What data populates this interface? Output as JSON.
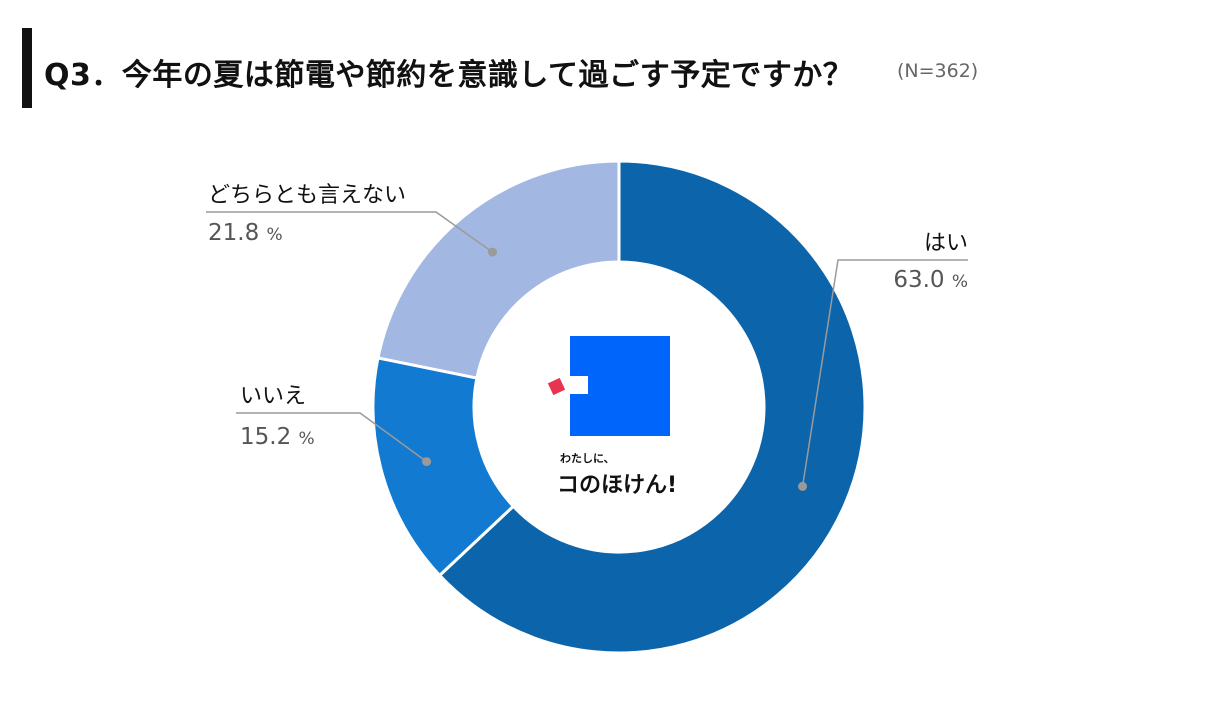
{
  "header": {
    "title": "Q3．今年の夏は節電や節約を意識して過ごす予定ですか？",
    "subtitle": "(N=362)"
  },
  "chart_data": {
    "type": "pie",
    "donut": true,
    "series": [
      {
        "name": "はい",
        "value": 63.0,
        "label": "63.0",
        "color": "#0c64ab"
      },
      {
        "name": "いいえ",
        "value": 15.2,
        "label": "15.2",
        "color": "#127ad0"
      },
      {
        "name": "どちらとも言えない",
        "value": 21.8,
        "label": "21.8",
        "color": "#a2b8e2"
      }
    ],
    "unit": "%",
    "start": "12 o'clock",
    "direction": "clockwise"
  },
  "logo": {
    "small_text": "わたしに、",
    "big_text": "コのほけん!",
    "colors": {
      "square": "#0065fa",
      "accent": "#e8344e"
    }
  }
}
